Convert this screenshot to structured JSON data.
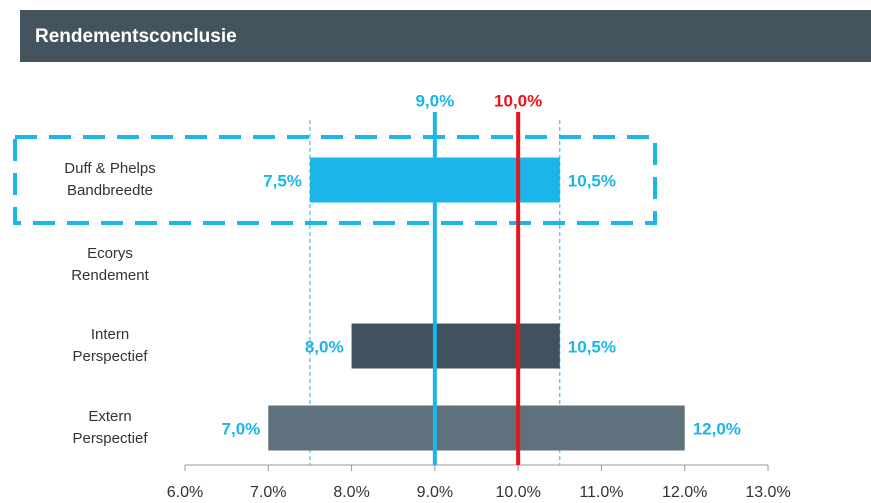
{
  "chart_data": {
    "type": "range_bar",
    "title": "Rendementsconclusie",
    "categories": [
      [
        "Duff & Phelps",
        "Bandbreedte"
      ],
      [
        "Ecorys",
        "Rendement"
      ],
      [
        "Intern",
        "Perspectief"
      ],
      [
        "Extern",
        "Perspectief"
      ]
    ],
    "low": [
      7.5,
      null,
      8.0,
      7.0
    ],
    "high": [
      10.5,
      null,
      10.5,
      12.0
    ],
    "low_labels": [
      "7,5%",
      null,
      "8,0%",
      "7,0%"
    ],
    "high_labels": [
      "10,5%",
      null,
      "10,5%",
      "12,0%"
    ],
    "colors": [
      "#1bb5e8",
      null,
      "#3f525e",
      "#5f717d"
    ],
    "label_color": "#1bb5e8",
    "highlight_row": 0,
    "reference_lines": [
      {
        "value": 9.0,
        "label": "9,0%",
        "color": "#1bb5e8"
      },
      {
        "value": 10.0,
        "label": "10,0%",
        "color": "#e8141b"
      }
    ],
    "xlim": [
      6.0,
      13.0
    ],
    "xticks": [
      {
        "value": 6.0,
        "label": "6.0%"
      },
      {
        "value": 7.0,
        "label": "7.0%"
      },
      {
        "value": 8.0,
        "label": "8.0%"
      },
      {
        "value": 9.0,
        "label": "9.0%"
      },
      {
        "value": 10.0,
        "label": "10.0%"
      },
      {
        "value": 11.0,
        "label": "11.0%"
      },
      {
        "value": 12.0,
        "label": "12.0%"
      },
      {
        "value": 13.0,
        "label": "13.0%"
      }
    ]
  }
}
